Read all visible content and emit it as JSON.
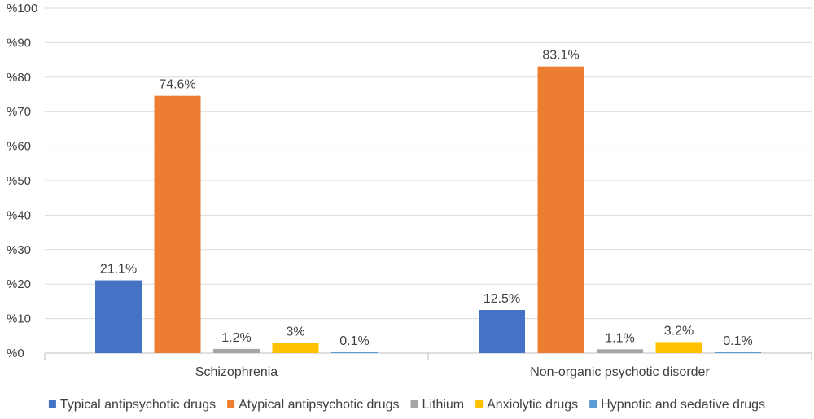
{
  "chart_data": {
    "type": "bar",
    "categories": [
      "Schizophrenia",
      "Non-organic psychotic disorder"
    ],
    "series": [
      {
        "name": "Typical antipsychotic drugs",
        "values": [
          21.1,
          12.5
        ],
        "labels": [
          "21.1%",
          "12.5%"
        ],
        "color": "#4472C4"
      },
      {
        "name": "Atypical antipsychotic drugs",
        "values": [
          74.6,
          83.1
        ],
        "labels": [
          "74.6%",
          "83.1%"
        ],
        "color": "#ED7D31"
      },
      {
        "name": "Lithium",
        "values": [
          1.2,
          1.1
        ],
        "labels": [
          "1.2%",
          "1.1%"
        ],
        "color": "#A5A5A5"
      },
      {
        "name": "Anxiolytic drugs",
        "values": [
          3,
          3.2
        ],
        "labels": [
          "3%",
          "3.2%"
        ],
        "color": "#FFC000"
      },
      {
        "name": "Hypnotic and sedative drugs",
        "values": [
          0.1,
          0.1
        ],
        "labels": [
          "0.1%",
          "0.1%"
        ],
        "color": "#5B9BD5"
      }
    ],
    "y_ticks": [
      "%0",
      "%10",
      "%20",
      "%30",
      "%40",
      "%50",
      "%60",
      "%70",
      "%80",
      "%90",
      "%100"
    ],
    "ylim": [
      0,
      100
    ],
    "grid": true,
    "legend_position": "bottom",
    "title": "",
    "xlabel": "",
    "ylabel": ""
  }
}
